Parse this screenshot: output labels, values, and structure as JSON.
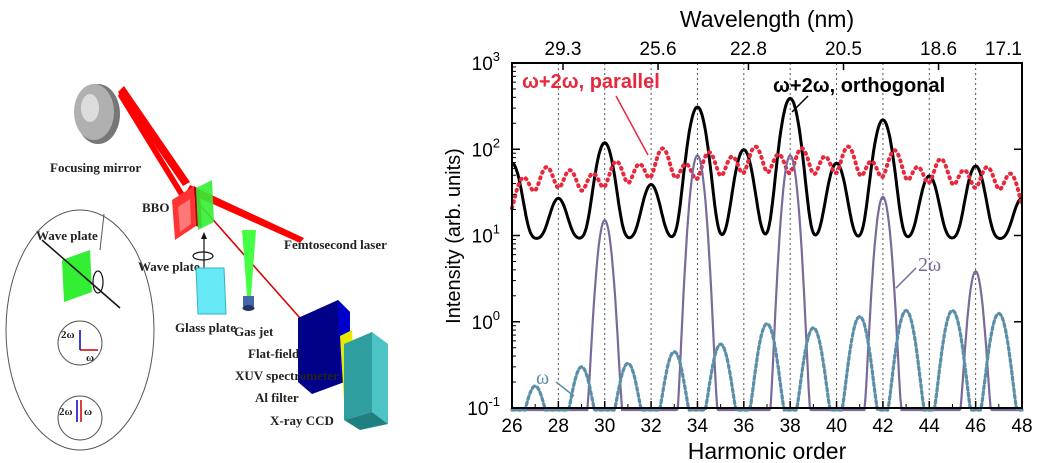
{
  "diagram": {
    "labels": {
      "focusing_mirror": "Focusing mirror",
      "bbo": "BBO",
      "femtosecond_laser": "Femtosecond laser",
      "wave_plate": "Wave plate",
      "glass_plate": "Glass plate",
      "gas_jet": "Gas jet",
      "flat_field": "Flat-field",
      "xuv_spectrometer": "XUV spectrometer",
      "al_filter": "Al filter",
      "xray_ccd": "X-ray CCD",
      "inset_wave_plate": "Wave plate",
      "inset_2w_a": "2ω",
      "inset_w_a": "ω",
      "inset_2w_b": "2ω",
      "inset_w_b": "ω"
    },
    "colors": {
      "beam": "#ff0000",
      "bbo": "#ff2020",
      "wave_plate": "#33ff33",
      "glass": "#66e8f5"
    }
  },
  "chart_data": {
    "type": "line",
    "title": "Wavelength (nm)",
    "xlabel": "Harmonic order",
    "ylabel": "Intensity (arb. units)",
    "x_range": [
      26,
      48
    ],
    "y_range": [
      0.1,
      1000
    ],
    "y_scale": "log",
    "x_ticks": [
      "26",
      "28",
      "30",
      "32",
      "34",
      "36",
      "38",
      "40",
      "42",
      "44",
      "46",
      "48"
    ],
    "y_ticks": [
      {
        "base": "10",
        "exp": "-1"
      },
      {
        "base": "10",
        "exp": "0"
      },
      {
        "base": "10",
        "exp": "1"
      },
      {
        "base": "10",
        "exp": "2"
      },
      {
        "base": "10",
        "exp": "3"
      }
    ],
    "top_ticks": [
      {
        "x": 28.2,
        "label": "29.3"
      },
      {
        "x": 32.3,
        "label": "25.6"
      },
      {
        "x": 36.2,
        "label": "22.8"
      },
      {
        "x": 40.3,
        "label": "20.5"
      },
      {
        "x": 44.4,
        "label": "18.6"
      },
      {
        "x": 48.2,
        "label": "17.1"
      }
    ],
    "grid_x": [
      28,
      30,
      32,
      34,
      36,
      38,
      40,
      42,
      44,
      46
    ],
    "annotations": {
      "parallel": "ω+2ω, parallel",
      "orthogonal": "ω+2ω, orthogonal",
      "two_omega": "2ω",
      "omega": "ω"
    },
    "series": [
      {
        "name": "ω+2ω, orthogonal",
        "color": "#000000",
        "style": "solid",
        "peaks": [
          [
            26,
            60
          ],
          [
            28,
            18
          ],
          [
            30,
            110
          ],
          [
            32,
            30
          ],
          [
            34,
            300
          ],
          [
            36,
            90
          ],
          [
            38,
            380
          ],
          [
            40,
            60
          ],
          [
            42,
            210
          ],
          [
            44,
            40
          ],
          [
            46,
            55
          ],
          [
            48,
            18
          ]
        ],
        "background": 9
      },
      {
        "name": "ω+2ω, parallel",
        "color": "#e8283c",
        "style": "dotted",
        "peaks": [
          [
            26.5,
            35
          ],
          [
            27.5,
            50
          ],
          [
            28.5,
            45
          ],
          [
            29.5,
            40
          ],
          [
            30.5,
            60
          ],
          [
            31.5,
            55
          ],
          [
            32.5,
            90
          ],
          [
            33.5,
            55
          ],
          [
            34.5,
            80
          ],
          [
            35.5,
            70
          ],
          [
            36.5,
            95
          ],
          [
            37.5,
            75
          ],
          [
            38.5,
            90
          ],
          [
            39.5,
            70
          ],
          [
            40.5,
            95
          ],
          [
            41.5,
            60
          ],
          [
            42.5,
            85
          ],
          [
            43.5,
            50
          ],
          [
            44.5,
            65
          ],
          [
            45.5,
            45
          ],
          [
            46.5,
            50
          ],
          [
            47.5,
            40
          ]
        ],
        "background": 12
      },
      {
        "name": "2ω",
        "color": "#7a6a9a",
        "style": "solid",
        "peaks": [
          [
            30,
            15
          ],
          [
            34,
            85
          ],
          [
            38,
            85
          ],
          [
            42,
            28
          ],
          [
            46,
            3.8
          ]
        ],
        "background": 0.05
      },
      {
        "name": "ω",
        "color": "#5b8ea8",
        "style": "dashed",
        "peaks": [
          [
            27,
            0.13
          ],
          [
            29,
            0.25
          ],
          [
            31,
            0.28
          ],
          [
            33,
            0.4
          ],
          [
            35,
            0.5
          ],
          [
            37,
            0.9
          ],
          [
            39,
            0.8
          ],
          [
            41,
            1.1
          ],
          [
            43,
            1.3
          ],
          [
            45,
            1.3
          ],
          [
            47,
            1.2
          ]
        ],
        "background": 0.05
      }
    ]
  }
}
